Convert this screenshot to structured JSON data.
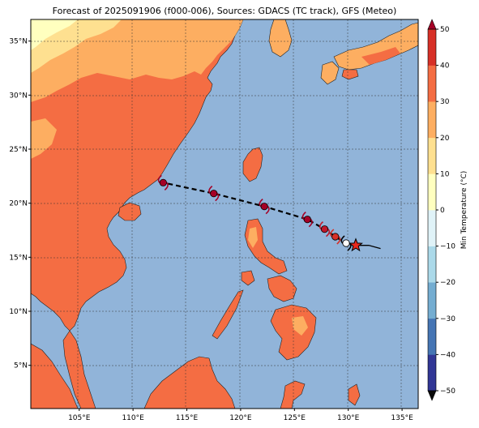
{
  "title": "Forecast of 2025091906 (f000-006), Sources: GDACS (TC track), GFS (Meteo)",
  "map": {
    "lon_range": [
      100.5,
      136.5
    ],
    "lat_range": [
      1.0,
      37.0
    ],
    "lon_ticks": [
      105,
      110,
      115,
      120,
      125,
      130,
      135
    ],
    "lat_ticks": [
      5,
      10,
      15,
      20,
      25,
      30,
      35
    ],
    "lon_labels": [
      "105°E",
      "110°E",
      "115°E",
      "120°E",
      "125°E",
      "130°E",
      "135°E"
    ],
    "lat_labels": [
      "5°N",
      "10°N",
      "15°N",
      "20°N",
      "25°N",
      "30°N",
      "35°N"
    ],
    "ocean_color": "#91b4d9",
    "grid": true
  },
  "colorbar": {
    "label": "Min Temperature (°C)",
    "ticks": [
      -50,
      -40,
      -30,
      -20,
      -10,
      0,
      10,
      20,
      30,
      40,
      50
    ],
    "tick_labels": [
      "−50",
      "−40",
      "−30",
      "−20",
      "−10",
      "0",
      "10",
      "20",
      "30",
      "40",
      "50"
    ],
    "colors": [
      "#313695",
      "#4575b4",
      "#74add1",
      "#abd9e9",
      "#e0f3f8",
      "#ffffbf",
      "#fee090",
      "#fdae61",
      "#f46d43",
      "#d73027",
      "#a50026"
    ]
  },
  "tc_track": {
    "current_position": {
      "lon": 130.7,
      "lat": 16.1,
      "marker": "star"
    },
    "observed_path": [
      {
        "lon": 133.0,
        "lat": 15.8
      },
      {
        "lon": 131.9,
        "lat": 16.1
      },
      {
        "lon": 130.7,
        "lat": 16.1
      }
    ],
    "forecast_points": [
      {
        "lon": 129.8,
        "lat": 16.3,
        "category_color": "#ffffff"
      },
      {
        "lon": 128.8,
        "lat": 16.9,
        "category_color": "#d73027"
      },
      {
        "lon": 127.8,
        "lat": 17.6,
        "category_color": "#c0182a"
      },
      {
        "lon": 126.2,
        "lat": 18.5,
        "category_color": "#a50026"
      },
      {
        "lon": 122.2,
        "lat": 19.7,
        "category_color": "#a50026"
      },
      {
        "lon": 117.5,
        "lat": 20.9,
        "category_color": "#a50026"
      },
      {
        "lon": 112.8,
        "lat": 21.9,
        "category_color": "#a50026"
      }
    ]
  }
}
